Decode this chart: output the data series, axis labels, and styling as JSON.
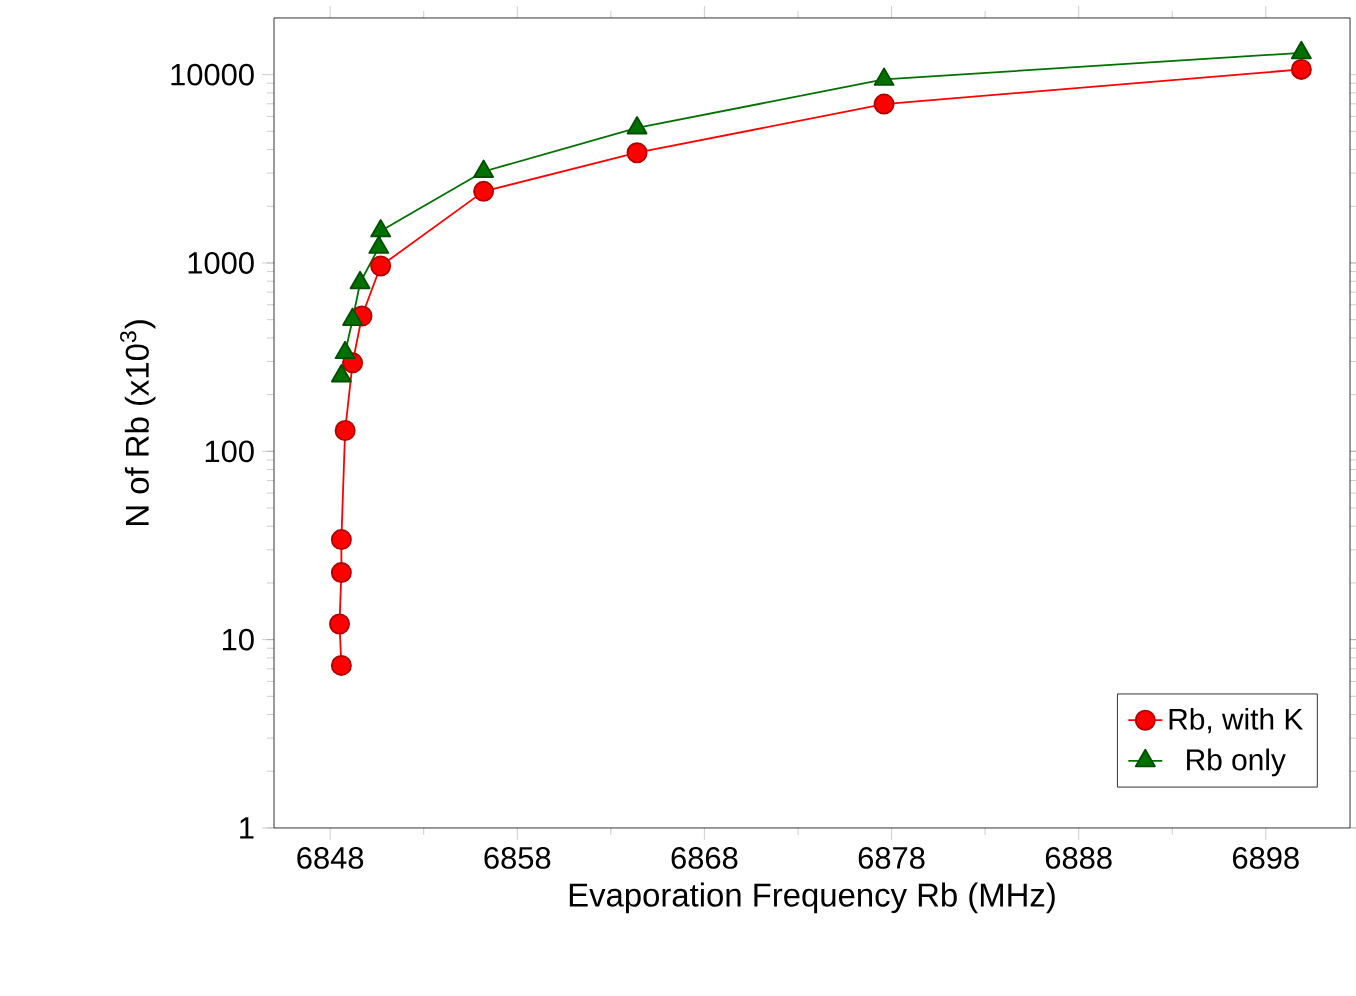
{
  "chart_data": {
    "type": "line",
    "xlabel": "Evaporation Frequency Rb (MHz)",
    "ylabel": "N of Rb (x10$^{3}$)",
    "log": "y",
    "xlim": [
      6845,
      6902.5
    ],
    "ylim": [
      1,
      20000
    ],
    "xticks": [
      6848,
      6858,
      6868,
      6878,
      6888,
      6898
    ],
    "yticks": [
      1,
      10,
      100,
      1000,
      10000
    ],
    "legend": "bottom right",
    "grid": false,
    "line_style": "solid",
    "series": [
      {
        "name": "Rb, with K",
        "color": "#ff0000",
        "marker": "circle",
        "x": [
          6848.6,
          6848.5,
          6848.6,
          6848.6,
          6848.8,
          6849.2,
          6849.7,
          6850.7,
          6856.2,
          6864.4,
          6877.6,
          6899.9
        ],
        "values": [
          7.3,
          12.1,
          22.7,
          34,
          129,
          295,
          523,
          964,
          2400,
          3850,
          6980,
          10660
        ]
      },
      {
        "name": "Rb only",
        "color": "#007000",
        "marker": "triangle",
        "x": [
          6848.6,
          6848.8,
          6849.2,
          6849.6,
          6850.6,
          6850.7,
          6856.2,
          6864.4,
          6877.6,
          6899.9
        ],
        "values": [
          251,
          334,
          501,
          785,
          1210,
          1480,
          3060,
          5210,
          9440,
          13060
        ]
      }
    ]
  }
}
